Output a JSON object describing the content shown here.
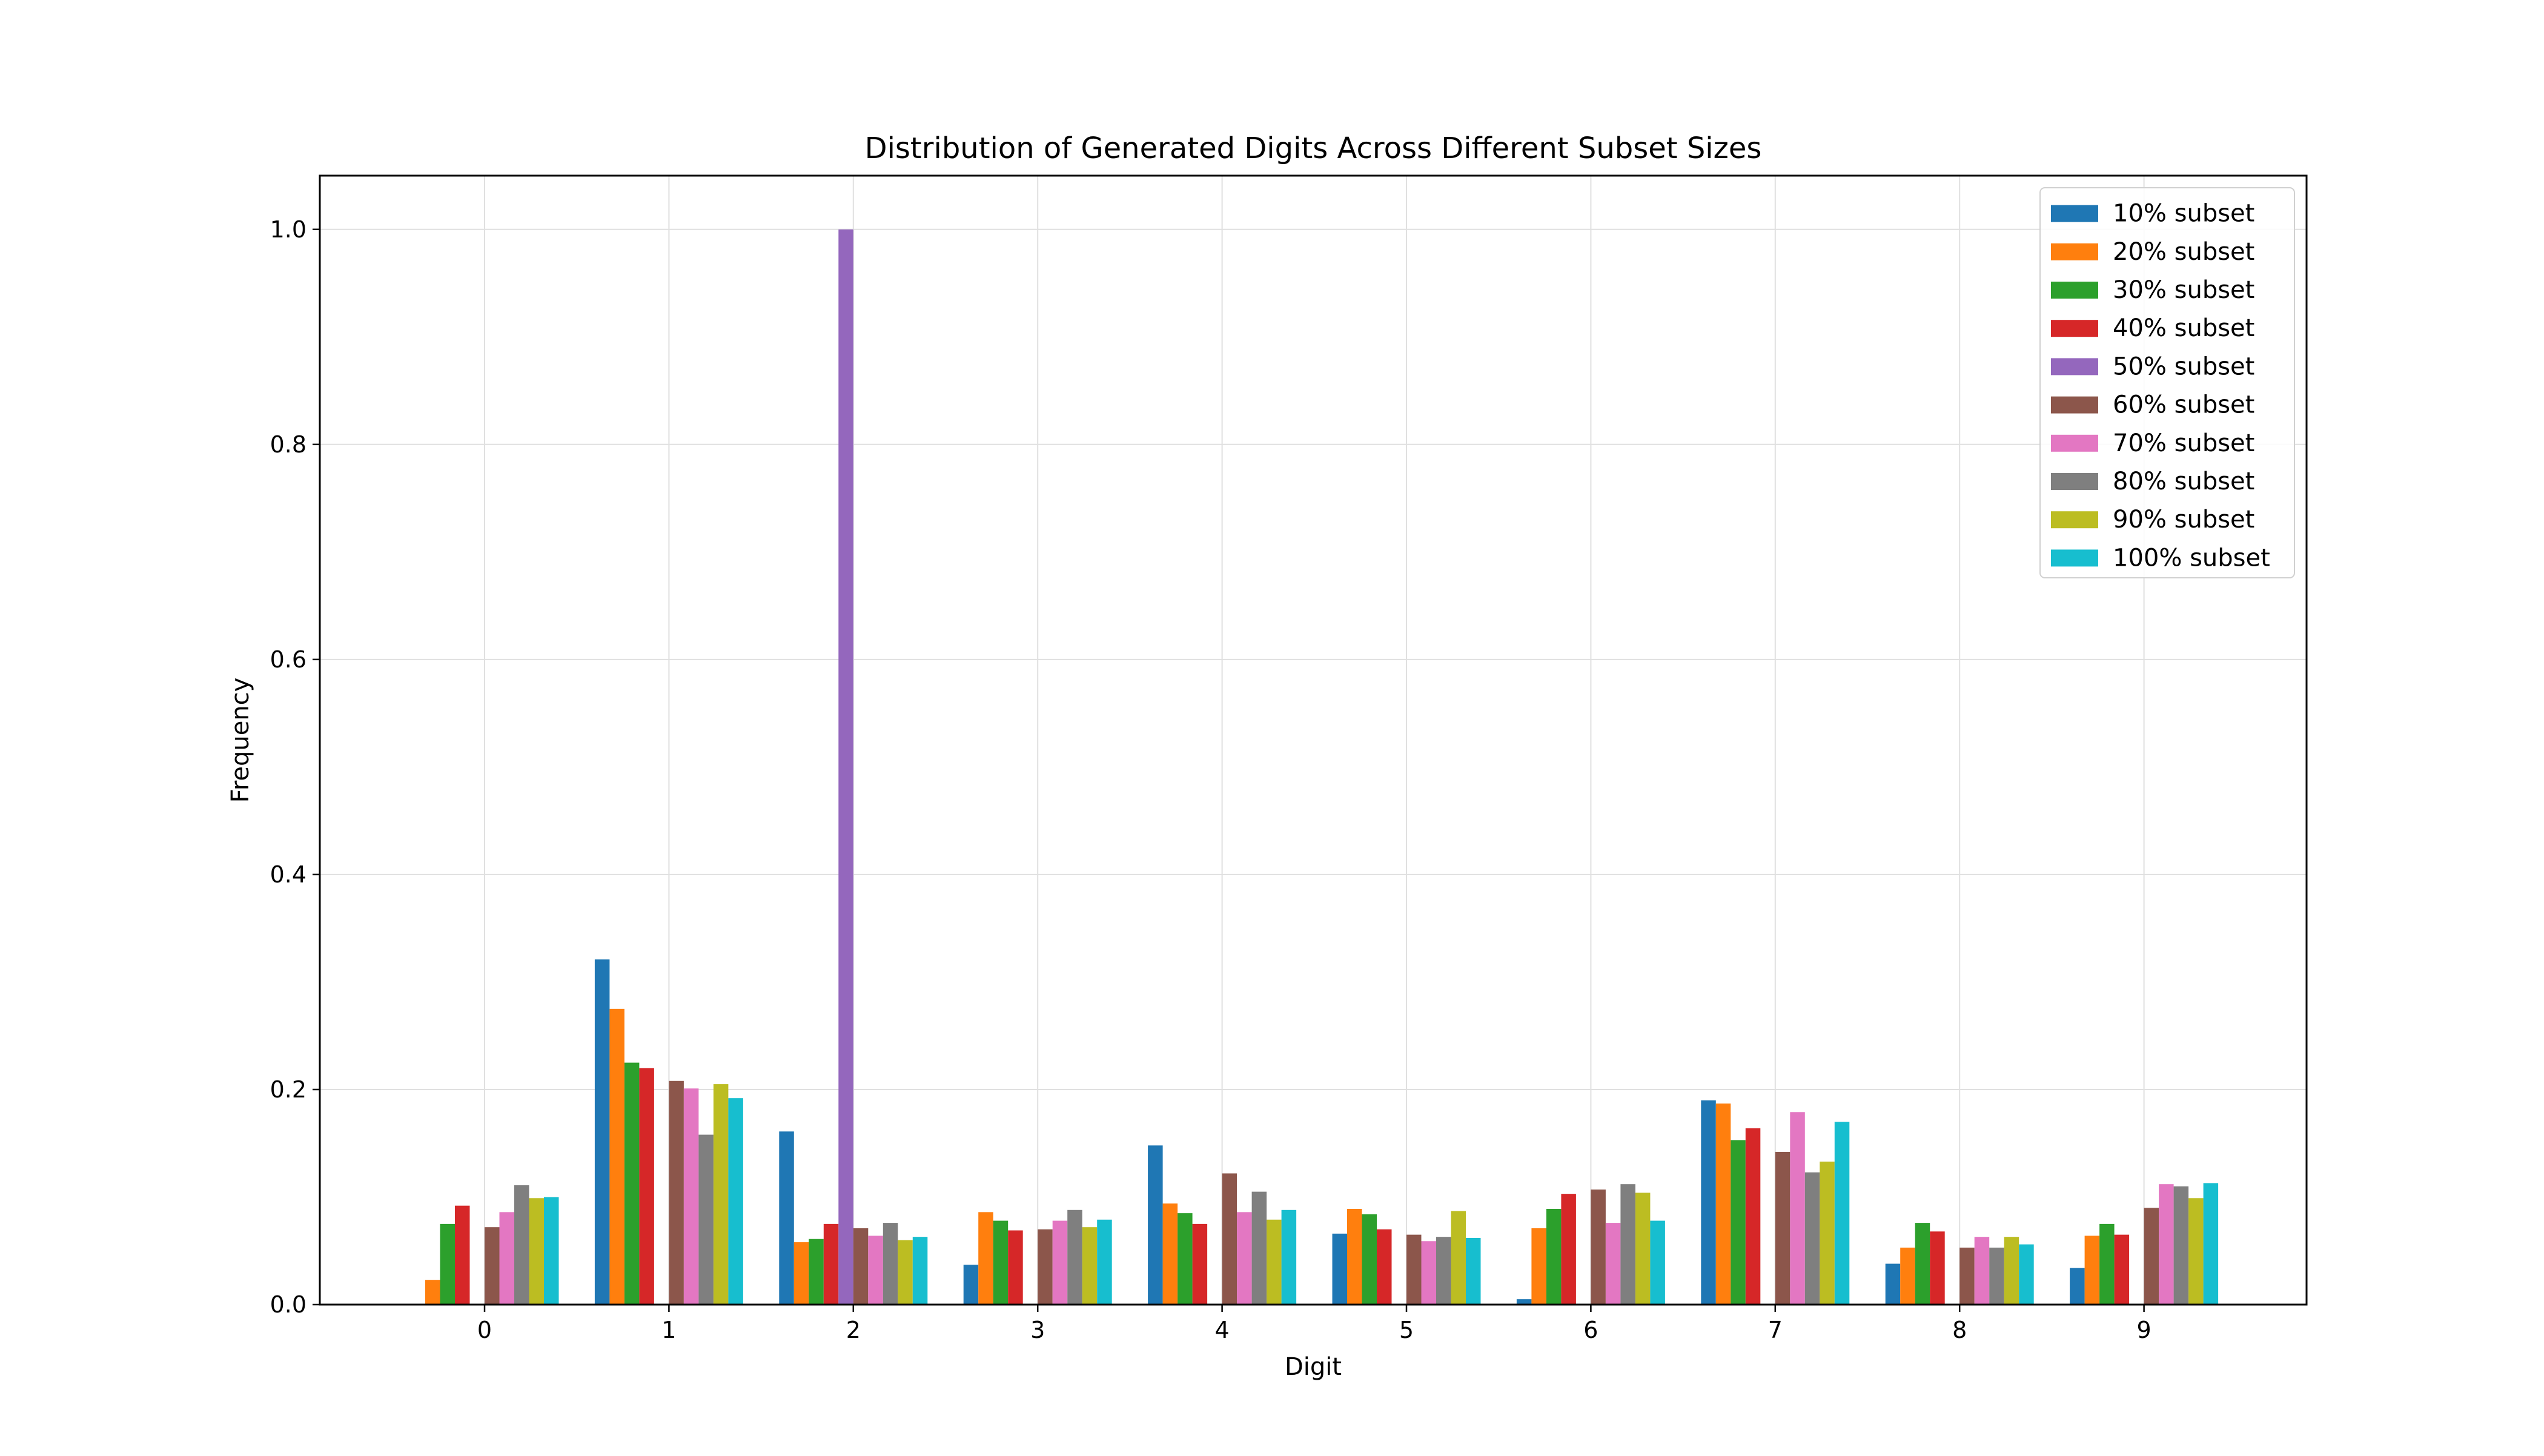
{
  "chart_data": {
    "type": "bar",
    "title": "Distribution of Generated Digits Across Different Subset Sizes",
    "xlabel": "Digit",
    "ylabel": "Frequency",
    "categories": [
      "0",
      "1",
      "2",
      "3",
      "4",
      "5",
      "6",
      "7",
      "8",
      "9"
    ],
    "ylim": [
      0,
      1.05
    ],
    "yticks": [
      "0.0",
      "0.2",
      "0.4",
      "0.6",
      "0.8",
      "1.0"
    ],
    "grid": true,
    "legend_position": "top-right",
    "series": [
      {
        "name": "10% subset",
        "color": "#1f77b4",
        "values": [
          0.0,
          0.321,
          0.161,
          0.037,
          0.148,
          0.066,
          0.005,
          0.19,
          0.038,
          0.034
        ]
      },
      {
        "name": "20% subset",
        "color": "#ff7f0e",
        "values": [
          0.023,
          0.275,
          0.058,
          0.086,
          0.094,
          0.089,
          0.071,
          0.187,
          0.053,
          0.064
        ]
      },
      {
        "name": "30% subset",
        "color": "#2ca02c",
        "values": [
          0.075,
          0.225,
          0.061,
          0.078,
          0.085,
          0.084,
          0.089,
          0.153,
          0.076,
          0.075
        ]
      },
      {
        "name": "40% subset",
        "color": "#d62728",
        "values": [
          0.092,
          0.22,
          0.075,
          0.069,
          0.075,
          0.07,
          0.103,
          0.164,
          0.068,
          0.065
        ]
      },
      {
        "name": "50% subset",
        "color": "#9467bd",
        "values": [
          0.0,
          0.0,
          1.0,
          0.0,
          0.0,
          0.0,
          0.0,
          0.0,
          0.0,
          0.0
        ]
      },
      {
        "name": "60% subset",
        "color": "#8c564b",
        "values": [
          0.072,
          0.208,
          0.071,
          0.07,
          0.122,
          0.065,
          0.107,
          0.142,
          0.053,
          0.09
        ]
      },
      {
        "name": "70% subset",
        "color": "#e377c2",
        "values": [
          0.086,
          0.201,
          0.064,
          0.078,
          0.086,
          0.059,
          0.076,
          0.179,
          0.063,
          0.112
        ]
      },
      {
        "name": "80% subset",
        "color": "#7f7f7f",
        "values": [
          0.111,
          0.158,
          0.076,
          0.088,
          0.105,
          0.063,
          0.112,
          0.123,
          0.053,
          0.11
        ]
      },
      {
        "name": "90% subset",
        "color": "#bcbd22",
        "values": [
          0.099,
          0.205,
          0.06,
          0.072,
          0.079,
          0.087,
          0.104,
          0.133,
          0.063,
          0.099
        ]
      },
      {
        "name": "100% subset",
        "color": "#17becf",
        "values": [
          0.1,
          0.192,
          0.063,
          0.079,
          0.088,
          0.062,
          0.078,
          0.17,
          0.056,
          0.113
        ]
      }
    ]
  }
}
